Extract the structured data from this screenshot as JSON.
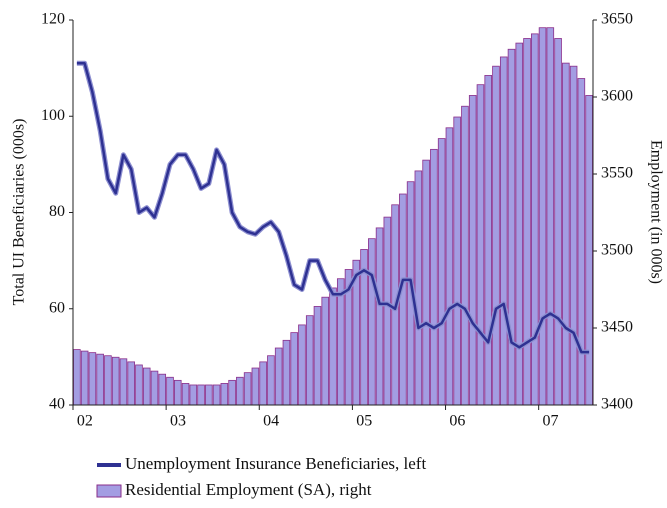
{
  "chart_data": {
    "type": "bar-line",
    "y_label": "Total UI Beneficiaries (000s)",
    "y2_label": "Employment (in 000s)",
    "categories": [
      "02",
      null,
      null,
      null,
      null,
      null,
      null,
      null,
      null,
      null,
      null,
      null,
      "03",
      null,
      null,
      null,
      null,
      null,
      null,
      null,
      null,
      null,
      null,
      null,
      "04",
      null,
      null,
      null,
      null,
      null,
      null,
      null,
      null,
      null,
      null,
      null,
      "05",
      null,
      null,
      null,
      null,
      null,
      null,
      null,
      null,
      null,
      null,
      null,
      "06",
      null,
      null,
      null,
      null,
      null,
      null,
      null,
      null,
      null,
      null,
      null,
      "07",
      null,
      null,
      null,
      null,
      null,
      null
    ],
    "ylim": [
      40,
      120
    ],
    "yticks": [
      40,
      60,
      80,
      100,
      120
    ],
    "y2lim": [
      3400,
      3650
    ],
    "y2ticks": [
      3400,
      3450,
      3500,
      3550,
      3600,
      3650
    ],
    "series": [
      {
        "name": "Unemployment Insurance Beneficiaries, left",
        "type": "line",
        "color": "#2e3192",
        "values": [
          111,
          111,
          105,
          97,
          87,
          84,
          92,
          89,
          80,
          81,
          79,
          84,
          90,
          92,
          92,
          89,
          85,
          86,
          93,
          90,
          80,
          77,
          76,
          75.5,
          77,
          78,
          76,
          71,
          65,
          64,
          70,
          70,
          66,
          63,
          63,
          64,
          67,
          68,
          67,
          61,
          61,
          60,
          66,
          66,
          56,
          57,
          56,
          57,
          60,
          61,
          60,
          57,
          55,
          53,
          60,
          61,
          53,
          52,
          53,
          54,
          58,
          59,
          58,
          56,
          55,
          51,
          51
        ]
      },
      {
        "name": "Residential Employment (SA), right",
        "type": "bar",
        "axis": "y2",
        "color": "#a39de2",
        "edge_color": "#8a2d8a",
        "values": [
          3436,
          3435,
          3434,
          3433,
          3432,
          3431,
          3430,
          3428,
          3426,
          3424,
          3422,
          3420,
          3418,
          3416,
          3414,
          3413,
          3413,
          3413,
          3413,
          3414,
          3416,
          3418,
          3421,
          3424,
          3428,
          3432,
          3437,
          3442,
          3447,
          3452,
          3458,
          3464,
          3470,
          3476,
          3482,
          3488,
          3494,
          3501,
          3508,
          3515,
          3522,
          3530,
          3537,
          3545,
          3552,
          3559,
          3566,
          3573,
          3580,
          3587,
          3594,
          3601,
          3608,
          3614,
          3620,
          3626,
          3631,
          3635,
          3638,
          3641,
          3645,
          3645,
          3638,
          3622,
          3620,
          3612,
          3601
        ]
      }
    ]
  }
}
